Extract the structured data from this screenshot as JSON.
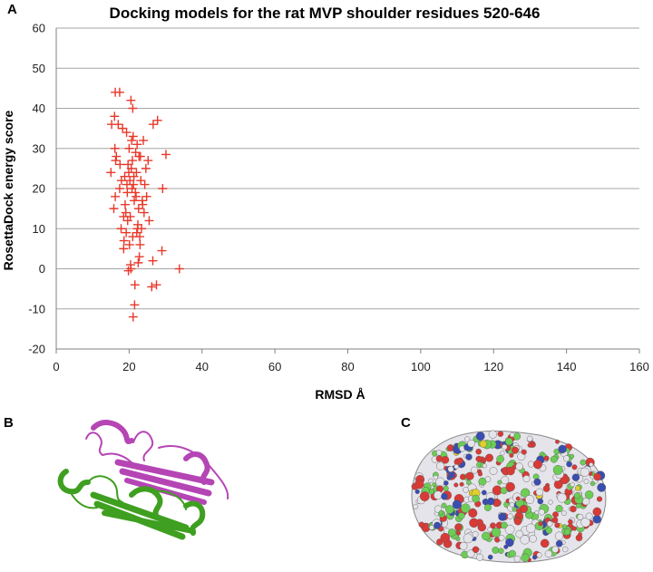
{
  "panels": {
    "a": "A",
    "b": "B",
    "c": "C"
  },
  "colors": {
    "marker": "#e8392a",
    "grid": "#a6a6a6",
    "axis": "#808080",
    "magenta_chain": "#b545b5",
    "green_chain": "#3f9f20",
    "surface_carbon": "#6ccd55",
    "surface_oxygen": "#d83a36",
    "surface_nitrogen": "#3a4db0",
    "surface_sulfur": "#e2cf2b",
    "surface_white": "#e4e4ea"
  },
  "chart_data": {
    "type": "scatter",
    "title": "Docking models for the rat MVP shoulder residues 520-646",
    "xlabel": "RMSD Å",
    "ylabel": "RosettaDock energy score",
    "xlim": [
      0,
      160
    ],
    "ylim": [
      -20,
      60
    ],
    "xticks": [
      "0",
      "20",
      "40",
      "60",
      "80",
      "100",
      "120",
      "140",
      "160"
    ],
    "yticks": [
      "60",
      "50",
      "40",
      "30",
      "20",
      "10",
      "0",
      "-10",
      "-20"
    ],
    "grid": "horizontal",
    "marker": "plus",
    "series": [
      {
        "x": [
          16.2,
          17.4,
          20.5,
          21.0,
          16.0,
          15.2,
          17.0,
          18.2,
          27.8,
          26.6,
          19.3,
          21.1,
          20.7,
          16.1,
          16.5,
          23.1,
          25.2,
          30.1,
          17.5,
          16.3,
          15.0,
          18.8,
          17.9,
          29.2,
          17.4,
          16.2,
          15.8,
          18.5,
          25.5,
          17.8,
          19.2,
          21.0,
          18.6,
          23.0,
          29.0,
          33.8,
          26.5,
          22.5,
          20.5,
          27.5,
          21.6,
          26.2,
          19.8,
          20.4,
          22.8,
          19.1,
          18.5,
          24.6,
          22.2,
          21.8,
          24.3,
          20.9,
          19.6,
          23.6,
          19.5,
          18.9,
          22.4,
          21.3,
          20.1,
          23.9,
          22.6,
          21.5,
          20.8,
          23.2,
          22.0,
          19.7,
          24.8,
          20.3,
          21.9,
          22.7,
          19.4,
          23.4,
          21.2,
          20.6,
          22.9,
          21.7,
          20.0,
          24.1,
          22.3,
          19.9,
          23.7,
          21.4,
          20.2,
          22.1,
          21.1
        ],
        "y": [
          44,
          44,
          42,
          40,
          38,
          36,
          36,
          35,
          37,
          36,
          34,
          33,
          32,
          30,
          28,
          28,
          27,
          28.5,
          26,
          27,
          24,
          23,
          22,
          20,
          20,
          18,
          15,
          13,
          12,
          10,
          9,
          8,
          7,
          6,
          4.5,
          0,
          2,
          1.5,
          0,
          -4,
          -4,
          -4.5,
          -0.5,
          1,
          3,
          14,
          5,
          25,
          31,
          29,
          21,
          27,
          12,
          17,
          19,
          16,
          11,
          23,
          6,
          32,
          15,
          -9,
          20,
          22,
          24,
          26,
          18,
          13,
          18,
          28,
          21,
          10,
          21,
          25,
          8,
          19,
          30,
          14,
          10,
          24,
          16,
          17,
          22,
          9,
          -12
        ]
      }
    ]
  }
}
